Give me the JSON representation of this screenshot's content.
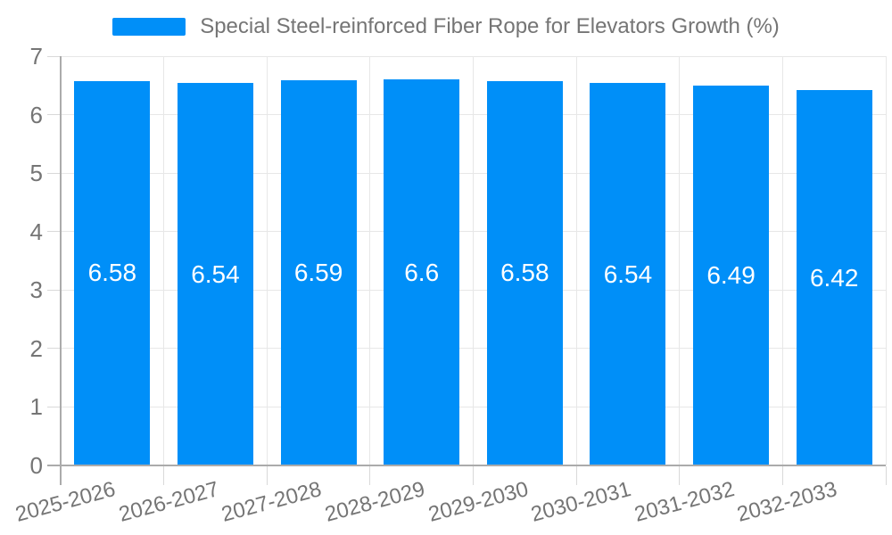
{
  "chart_data": {
    "type": "bar",
    "title": "",
    "legend": {
      "position": "top",
      "label": "Special Steel-reinforced Fiber Rope for Elevators Growth (%)"
    },
    "categories": [
      "2025-2026",
      "2026-2027",
      "2027-2028",
      "2028-2029",
      "2029-2030",
      "2030-2031",
      "2031-2032",
      "2032-2033"
    ],
    "series": [
      {
        "name": "Special Steel-reinforced Fiber Rope for Elevators Growth (%)",
        "values": [
          6.58,
          6.54,
          6.59,
          6.6,
          6.58,
          6.54,
          6.49,
          6.42
        ]
      }
    ],
    "value_labels": [
      "6.58",
      "6.54",
      "6.59",
      "6.6",
      "6.58",
      "6.54",
      "6.49",
      "6.42"
    ],
    "xlabel": "",
    "ylabel": "",
    "ylim": [
      0,
      7
    ],
    "yticks": [
      0,
      1,
      2,
      3,
      4,
      5,
      6,
      7
    ],
    "grid": true,
    "x_label_rotation_deg": -15,
    "colors": {
      "bar": "#008FF8",
      "axis_line": "#ABABAB",
      "grid_line": "#E7E7E7",
      "tick_line": "#D9D9D9",
      "axis_text": "#757575",
      "legend_text": "#757575",
      "value_text": "#FFFFFF",
      "background": "#FFFFFF"
    }
  }
}
